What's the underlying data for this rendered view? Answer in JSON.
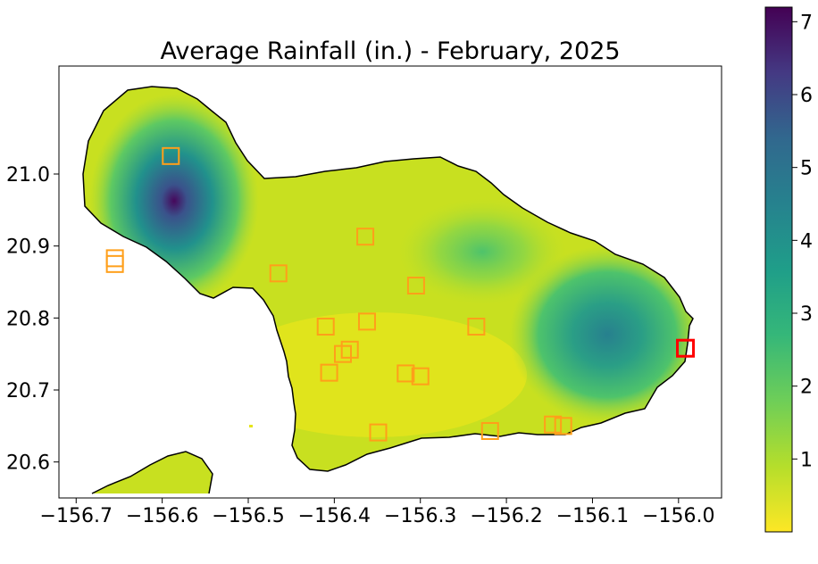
{
  "chart_data": {
    "type": "heatmap",
    "title": "Average Rainfall (in.) - February, 2025",
    "xlabel": "",
    "ylabel": "",
    "xlim": [
      -156.72,
      -155.95
    ],
    "ylim": [
      20.55,
      21.15
    ],
    "x_ticks": [
      -156.7,
      -156.6,
      -156.5,
      -156.4,
      -156.3,
      -156.2,
      -156.1,
      -156.0
    ],
    "x_tick_labels": [
      "−156.7",
      "−156.6",
      "−156.5",
      "−156.4",
      "−156.3",
      "−156.2",
      "−156.1",
      "−156.0"
    ],
    "y_ticks": [
      20.6,
      20.7,
      20.8,
      20.9,
      21.0
    ],
    "y_tick_labels": [
      "20.6",
      "20.7",
      "20.8",
      "20.9",
      "21.0"
    ],
    "colorbar": {
      "colormap": "viridis",
      "range": [
        0,
        7.2
      ],
      "ticks": [
        1,
        2,
        3,
        4,
        5,
        6,
        7
      ],
      "tick_labels": [
        "1",
        "2",
        "3",
        "4",
        "5",
        "6",
        "7"
      ]
    },
    "rainfall_hotspots": [
      {
        "lon": -156.59,
        "lat": 20.89,
        "value": 6.9
      },
      {
        "lon": -156.08,
        "lat": 20.74,
        "value": 3.7
      },
      {
        "lon": -156.22,
        "lat": 20.83,
        "value": 1.9
      }
    ],
    "background_value": 0.4,
    "station_markers": [
      {
        "lon": -156.59,
        "lat": 21.025
      },
      {
        "lon": -156.655,
        "lat": 20.883
      },
      {
        "lon": -156.655,
        "lat": 20.875
      },
      {
        "lon": -156.465,
        "lat": 20.862
      },
      {
        "lon": -156.364,
        "lat": 20.913
      },
      {
        "lon": -156.305,
        "lat": 20.845
      },
      {
        "lon": -156.41,
        "lat": 20.788
      },
      {
        "lon": -156.362,
        "lat": 20.795
      },
      {
        "lon": -156.235,
        "lat": 20.788
      },
      {
        "lon": -156.39,
        "lat": 20.75
      },
      {
        "lon": -156.382,
        "lat": 20.756
      },
      {
        "lon": -156.406,
        "lat": 20.724
      },
      {
        "lon": -156.317,
        "lat": 20.723
      },
      {
        "lon": -156.3,
        "lat": 20.719
      },
      {
        "lon": -156.349,
        "lat": 20.641
      },
      {
        "lon": -156.219,
        "lat": 20.643
      },
      {
        "lon": -156.146,
        "lat": 20.652
      },
      {
        "lon": -156.134,
        "lat": 20.65
      }
    ],
    "highlighted_station": {
      "lon": -155.992,
      "lat": 20.758
    },
    "colors": {
      "station_marker": "#ff9f1a",
      "highlighted_marker": "#ff0000",
      "coastline": "#000000"
    }
  }
}
